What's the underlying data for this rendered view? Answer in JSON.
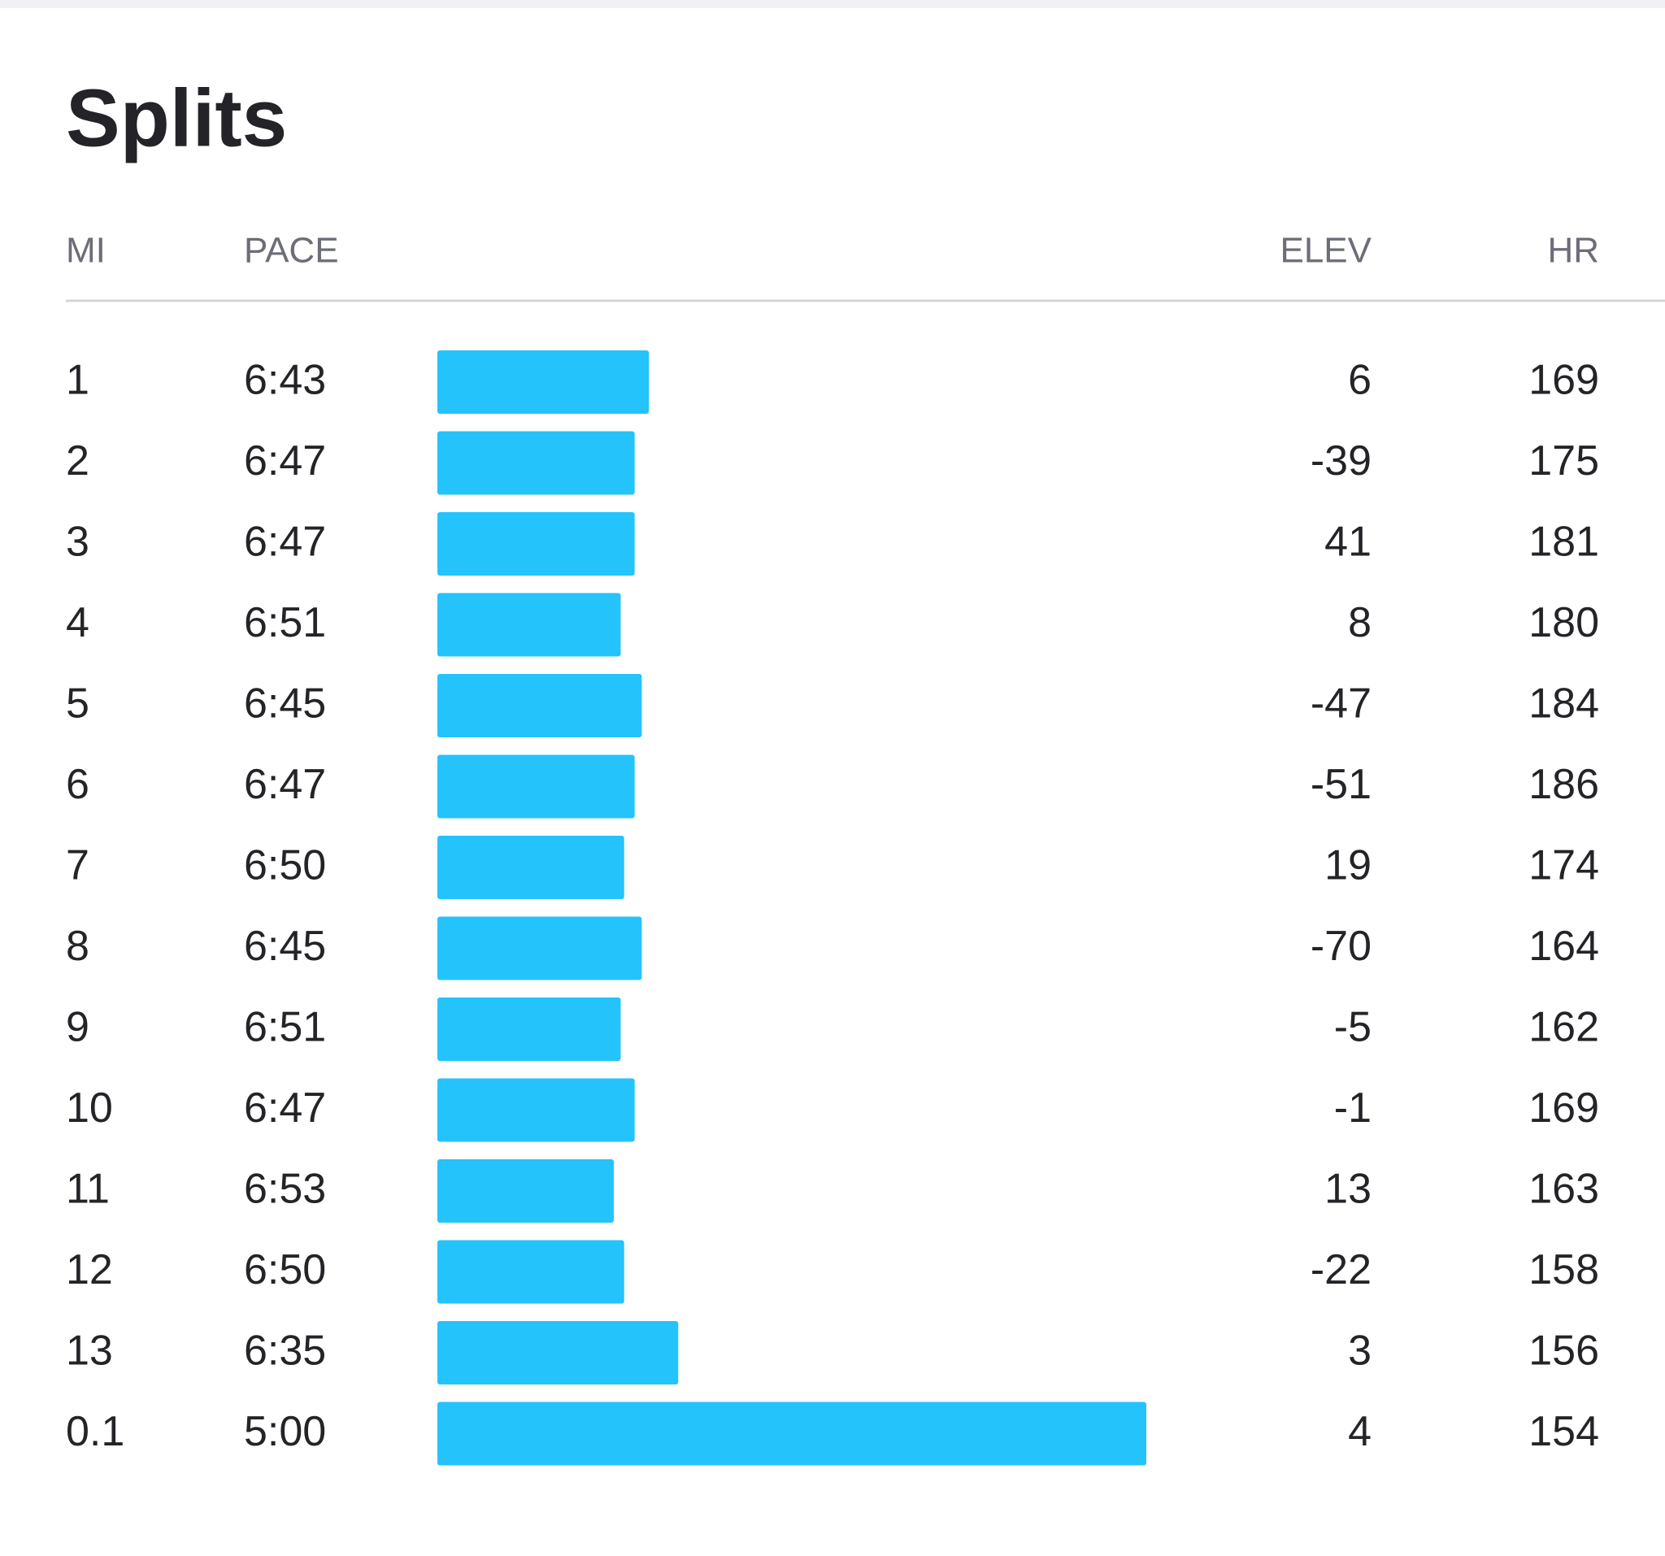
{
  "title": "Splits",
  "columns": [
    "MI",
    "PACE",
    "ELEV",
    "HR"
  ],
  "rows": [
    {
      "mi": 1,
      "pace": "6:43",
      "elev": 6,
      "hr": 169
    },
    {
      "mi": 2,
      "pace": "6:47",
      "elev": -39,
      "hr": 175
    },
    {
      "mi": 3,
      "pace": "6:47",
      "elev": 41,
      "hr": 181
    },
    {
      "mi": 4,
      "pace": "6:51",
      "elev": 8,
      "hr": 180
    },
    {
      "mi": 5,
      "pace": "6:45",
      "elev": -47,
      "hr": 184
    },
    {
      "mi": 6,
      "pace": "6:47",
      "elev": -51,
      "hr": 186
    },
    {
      "mi": 7,
      "pace": "6:50",
      "elev": 19,
      "hr": 174
    },
    {
      "mi": 8,
      "pace": "6:45",
      "elev": -70,
      "hr": 164
    },
    {
      "mi": 9,
      "pace": "6:51",
      "elev": -5,
      "hr": 162
    },
    {
      "mi": 10,
      "pace": "6:47",
      "elev": -1,
      "hr": 169
    },
    {
      "mi": 11,
      "pace": "6:53",
      "elev": 13,
      "hr": 163
    },
    {
      "mi": 12,
      "pace": "6:50",
      "elev": -22,
      "hr": 158
    },
    {
      "mi": 13,
      "pace": "6:35",
      "elev": 3,
      "hr": 156
    },
    {
      "mi": 0.1,
      "pace": "5:00",
      "elev": 4,
      "hr": 154
    }
  ]
}
